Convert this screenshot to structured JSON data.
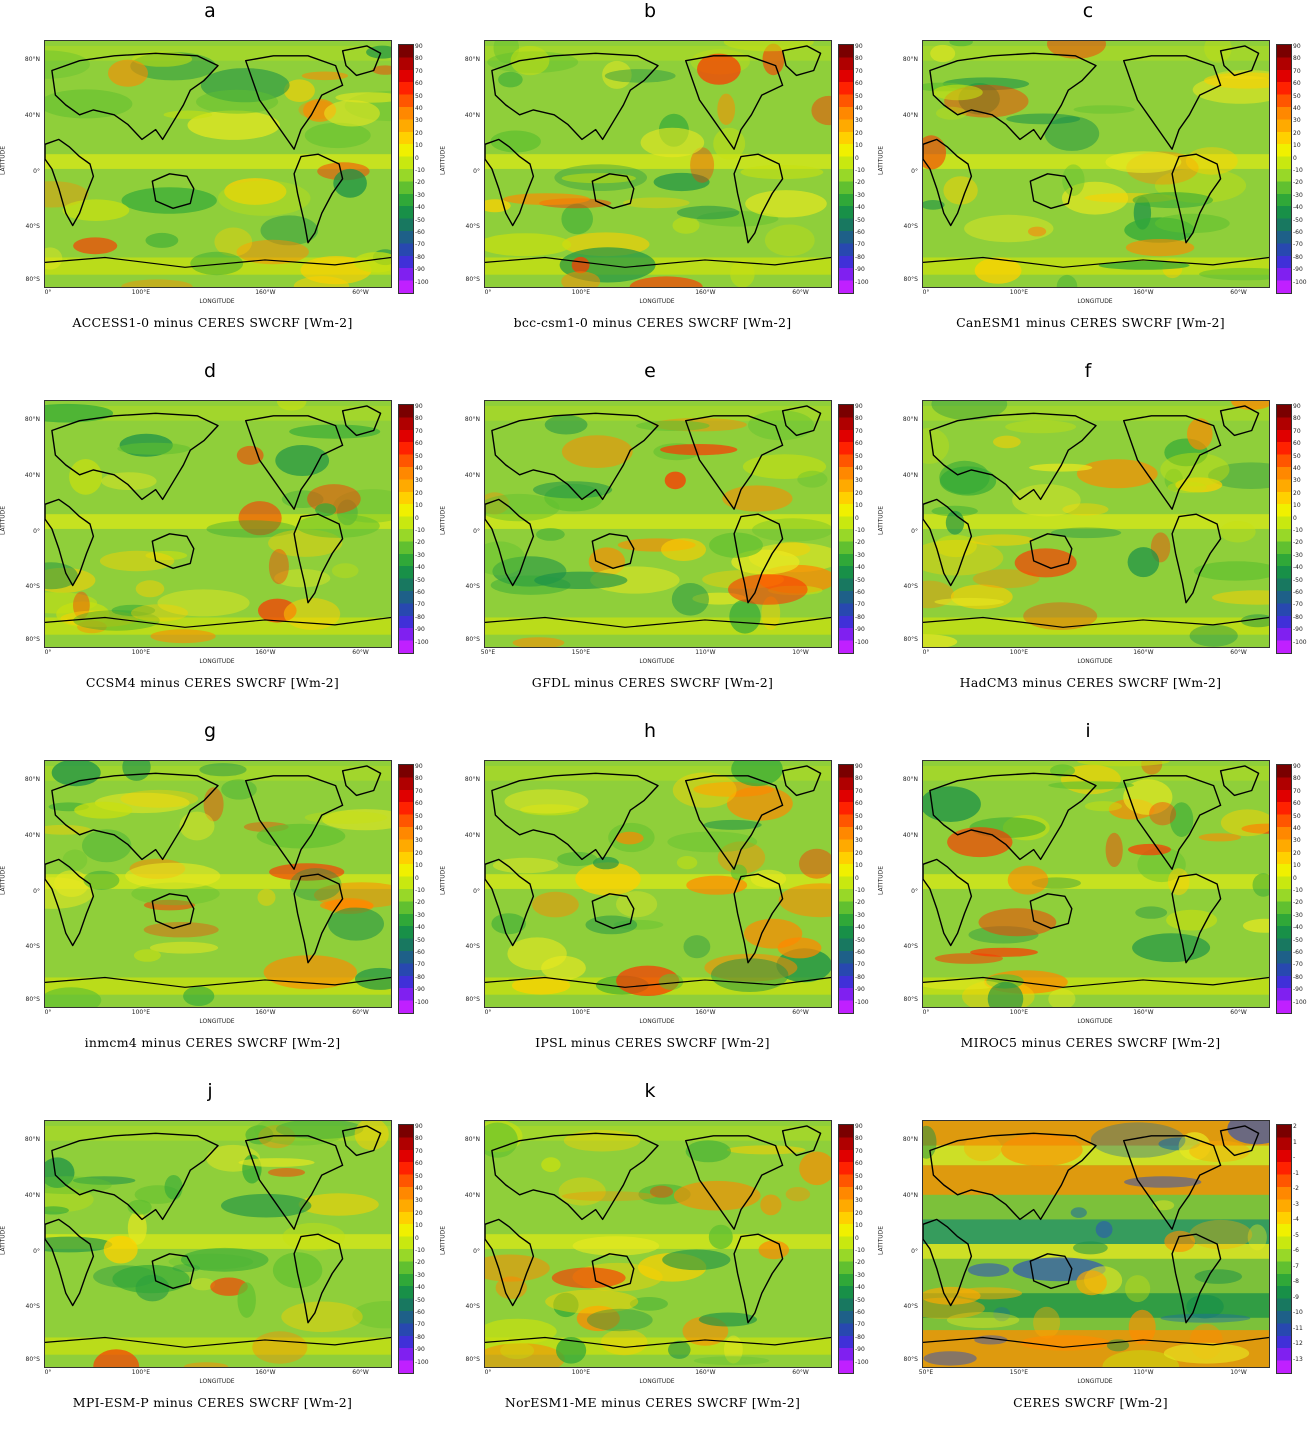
{
  "figure": {
    "panels": [
      {
        "letter": "a",
        "caption": "ACCESS1-0 minus CERES SWCRF [Wm-2]",
        "lon_ticks": [
          "0°",
          "100°E",
          "160°W",
          "60°W"
        ],
        "seed": 1,
        "scale": "diff"
      },
      {
        "letter": "b",
        "caption": "bcc-csm1-0 minus CERES SWCRF [Wm-2]",
        "lon_ticks": [
          "0°",
          "100°E",
          "160°W",
          "60°W"
        ],
        "seed": 2,
        "scale": "diff"
      },
      {
        "letter": "c",
        "caption": "CanESM1 minus CERES SWCRF [Wm-2]",
        "lon_ticks": [
          "0°",
          "100°E",
          "160°W",
          "60°W"
        ],
        "seed": 3,
        "scale": "diff"
      },
      {
        "letter": "d",
        "caption": "CCSM4 minus CERES SWCRF [Wm-2]",
        "lon_ticks": [
          "0°",
          "100°E",
          "160°W",
          "60°W"
        ],
        "seed": 4,
        "scale": "diff"
      },
      {
        "letter": "e",
        "caption": "GFDL minus CERES SWCRF [Wm-2]",
        "lon_ticks": [
          "50°E",
          "150°E",
          "110°W",
          "10°W"
        ],
        "seed": 5,
        "scale": "diff"
      },
      {
        "letter": "f",
        "caption": "HadCM3 minus CERES SWCRF [Wm-2]",
        "lon_ticks": [
          "0°",
          "100°E",
          "160°W",
          "60°W"
        ],
        "seed": 6,
        "scale": "diff"
      },
      {
        "letter": "g",
        "caption": "inmcm4 minus CERES SWCRF [Wm-2]",
        "lon_ticks": [
          "0°",
          "100°E",
          "160°W",
          "60°W"
        ],
        "seed": 7,
        "scale": "diff"
      },
      {
        "letter": "h",
        "caption": "IPSL minus CERES SWCRF [Wm-2]",
        "lon_ticks": [
          "0°",
          "100°E",
          "160°W",
          "60°W"
        ],
        "seed": 8,
        "scale": "diff"
      },
      {
        "letter": "i",
        "caption": "MIROC5 minus CERES SWCRF [Wm-2]",
        "lon_ticks": [
          "0°",
          "100°E",
          "160°W",
          "60°W"
        ],
        "seed": 9,
        "scale": "diff"
      },
      {
        "letter": "j",
        "caption": "MPI-ESM-P minus CERES SWCRF [Wm-2]",
        "lon_ticks": [
          "0°",
          "100°E",
          "160°W",
          "60°W"
        ],
        "seed": 10,
        "scale": "diff"
      },
      {
        "letter": "k",
        "caption": "NorESM1-ME minus CERES SWCRF [Wm-2]",
        "lon_ticks": [
          "0°",
          "100°E",
          "160°W",
          "60°W"
        ],
        "seed": 11,
        "scale": "diff"
      },
      {
        "letter": "",
        "caption": "CERES SWCRF [Wm-2]",
        "lon_ticks": [
          "50°E",
          "150°E",
          "110°W",
          "10°W"
        ],
        "seed": 12,
        "scale": "abs"
      }
    ],
    "lat_ticks": [
      "80°N",
      "40°N",
      "0°",
      "40°S",
      "80°S"
    ],
    "xlabel": "LONGITUDE",
    "ylabel": "LATITUDE",
    "colorbar_diff": [
      "90",
      "80",
      "70",
      "60",
      "50",
      "40",
      "30",
      "20",
      "10",
      "0",
      "-10",
      "-20",
      "-30",
      "-40",
      "-50",
      "-60",
      "-70",
      "-80",
      "-90",
      "-100"
    ],
    "colorbar_abs": [
      "2",
      "1",
      "-",
      "-1",
      "-2",
      "-3",
      "-4",
      "-5",
      "-6",
      "-7",
      "-8",
      "-9",
      "-10",
      "-11",
      "-12",
      "-13"
    ],
    "colorbar_colors": [
      "#7a0000",
      "#b00000",
      "#e00000",
      "#ff2200",
      "#ff5500",
      "#ff8800",
      "#ffaa00",
      "#ffd000",
      "#f0f000",
      "#c8e810",
      "#98d828",
      "#60c030",
      "#30a838",
      "#189048",
      "#187860",
      "#1e6088",
      "#2848b0",
      "#4030d8",
      "#8020f0",
      "#c020ff"
    ]
  }
}
